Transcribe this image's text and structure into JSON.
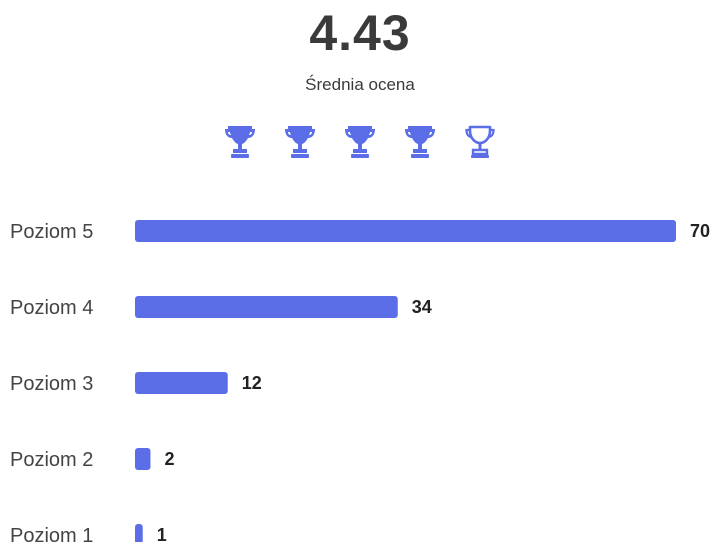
{
  "summary": {
    "average": "4.43",
    "average_label": "Średnia ocena",
    "rating_max": 5,
    "rating_value": 4.43,
    "icon": "trophy-icon",
    "filled_color": "#5B6EE8",
    "empty_color": "#5B6EE8"
  },
  "chart_data": {
    "type": "bar",
    "orientation": "horizontal",
    "categories": [
      "Poziom 5",
      "Poziom 4",
      "Poziom 3",
      "Poziom 2",
      "Poziom 1"
    ],
    "values": [
      70,
      34,
      12,
      2,
      1
    ],
    "data_labels": [
      "70",
      "34",
      "12",
      "2",
      "1"
    ],
    "xlim": [
      0,
      70
    ],
    "grid": false,
    "bar_color": "#5B6EE8"
  }
}
